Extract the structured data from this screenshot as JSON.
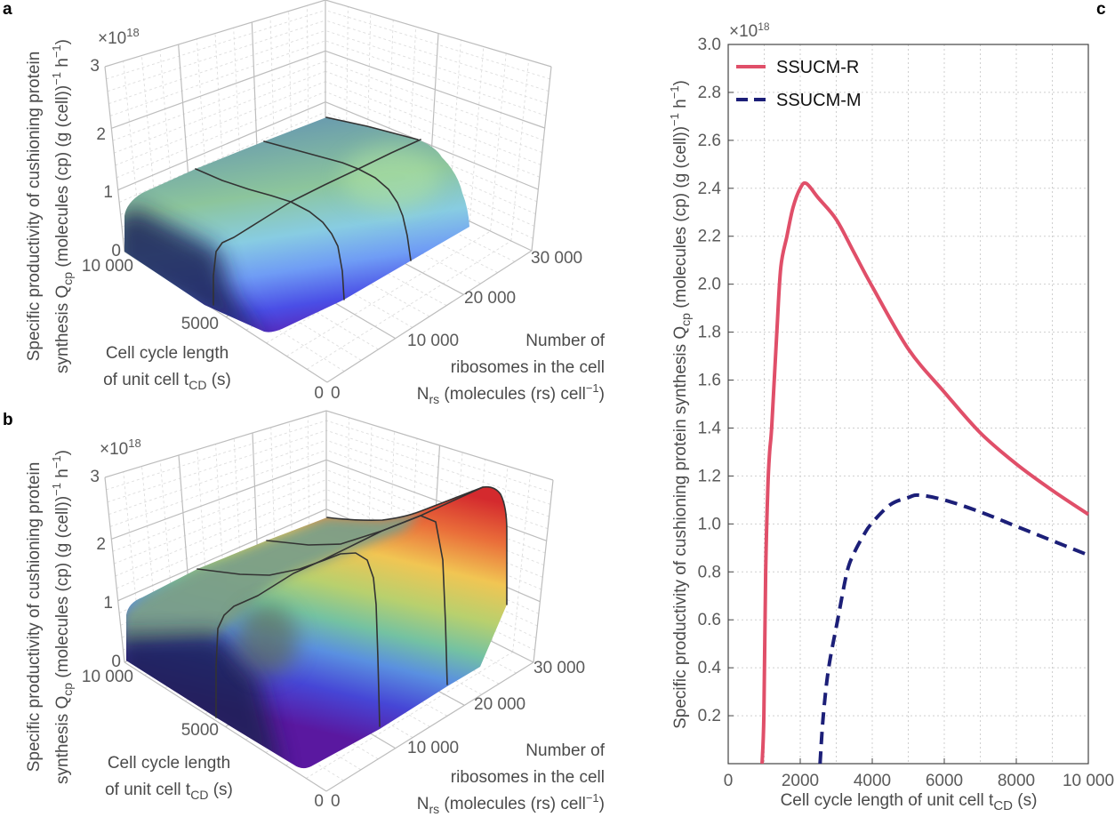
{
  "panels": {
    "a": "a",
    "b": "b",
    "c": "c"
  },
  "chart_data": [
    {
      "type": "surface3d",
      "panel": "a",
      "surface_colormap": "blue-green (purple at base)",
      "multiplier": {
        "base": "×10",
        "exp": "18"
      },
      "zlabel": {
        "line1": "Specific productivity of cushioning protein",
        "a": "synthesis Q",
        "sub": "cp",
        "b": " (molecules (cp) (g (cell))",
        "sup1": "−1",
        "c": " h",
        "sup2": "−1",
        "d": ")"
      },
      "tlabel": {
        "line1": "Cell cycle length",
        "a": "of unit cell t",
        "sub": "CD",
        "b": " (s)"
      },
      "nlabel": {
        "line1": "Number of",
        "line2": "ribosomes in the cell",
        "a": "N",
        "sub": "rs",
        "b": " (molecules (rs) cell",
        "sup": "−1",
        "c": ")"
      },
      "t_range": [
        0,
        10000
      ],
      "N_range": [
        0,
        30000
      ],
      "z_range": [
        0,
        3
      ],
      "t_ticks": [
        "0",
        "5000",
        "10 000"
      ],
      "N_ticks": [
        "0",
        "10 000",
        "20 000",
        "30 000"
      ],
      "z_ticks": [
        "0",
        "1",
        "2",
        "3"
      ],
      "grid": true
    },
    {
      "type": "surface3d",
      "panel": "b",
      "surface_colormap": "rainbow",
      "multiplier": {
        "base": "×10",
        "exp": "18"
      },
      "zlabel": {
        "line1": "Specific productivity of cushioning protein",
        "a": "synthesis Q",
        "sub": "cp",
        "b": " (molecules (cp) (g (cell))",
        "sup1": "−1",
        "c": " h",
        "sup2": "−1",
        "d": ")"
      },
      "tlabel": {
        "line1": "Cell cycle length",
        "a": "of unit cell t",
        "sub": "CD",
        "b": " (s)"
      },
      "nlabel": {
        "line1": "Number of",
        "line2": "ribosomes in the cell",
        "a": "N",
        "sub": "rs",
        "b": " (molecules (rs) cell",
        "sup": "−1",
        "c": ")"
      },
      "t_range": [
        0,
        10000
      ],
      "N_range": [
        0,
        30000
      ],
      "z_range": [
        0,
        3
      ],
      "t_ticks": [
        "0",
        "5000",
        "10 000"
      ],
      "N_ticks": [
        "0",
        "10 000",
        "20 000",
        "30 000"
      ],
      "z_ticks": [
        "0",
        "1",
        "2",
        "3"
      ],
      "grid": true
    },
    {
      "type": "line",
      "panel": "c",
      "multiplier": {
        "base": "×10",
        "exp": "18"
      },
      "xlabel": {
        "a": "Cell cycle length of unit cell t",
        "sub": "CD",
        "b": " (s)"
      },
      "ylabel": {
        "a": "Specific productivity of cushioning protein synthesis Q",
        "sub": "cp",
        "b": " (molecules (cp) (g (cell))",
        "sup1": "−1",
        "c": " h",
        "sup2": "−1",
        "d": ")"
      },
      "xlim": [
        0,
        10000
      ],
      "ylim": [
        0,
        3.0
      ],
      "xticks": [
        "0",
        "2000",
        "4000",
        "6000",
        "8000",
        "10 000"
      ],
      "yticks": [
        "0.2",
        "0.4",
        "0.6",
        "0.8",
        "1.0",
        "1.2",
        "1.4",
        "1.6",
        "1.8",
        "2.0",
        "2.2",
        "2.4",
        "2.6",
        "2.8",
        "3.0"
      ],
      "grid": true,
      "legend": "top-left",
      "series": [
        {
          "name": "SSUCM-R",
          "color": "#e04f69",
          "style": "solid",
          "x": [
            940,
            990,
            1040,
            1100,
            1150,
            1210,
            1350,
            1460,
            1630,
            1800,
            2000,
            2170,
            2500,
            3000,
            3500,
            4000,
            5000,
            6000,
            7000,
            8000,
            9000,
            10000
          ],
          "y": [
            0,
            0.2,
            0.8,
            1.15,
            1.3,
            1.41,
            1.8,
            2.07,
            2.2,
            2.32,
            2.4,
            2.42,
            2.36,
            2.27,
            2.13,
            1.99,
            1.73,
            1.55,
            1.38,
            1.25,
            1.14,
            1.04
          ]
        },
        {
          "name": "SSUCM-M",
          "color": "#1c1f78",
          "style": "dashed",
          "x": [
            2550,
            2640,
            2790,
            3040,
            3300,
            3500,
            3750,
            3970,
            4500,
            5000,
            5300,
            6000,
            7000,
            8000,
            9000,
            10000
          ],
          "y": [
            0,
            0.2,
            0.4,
            0.6,
            0.8,
            0.88,
            0.95,
            1.0,
            1.08,
            1.11,
            1.12,
            1.1,
            1.05,
            0.99,
            0.93,
            0.87
          ]
        }
      ]
    }
  ]
}
